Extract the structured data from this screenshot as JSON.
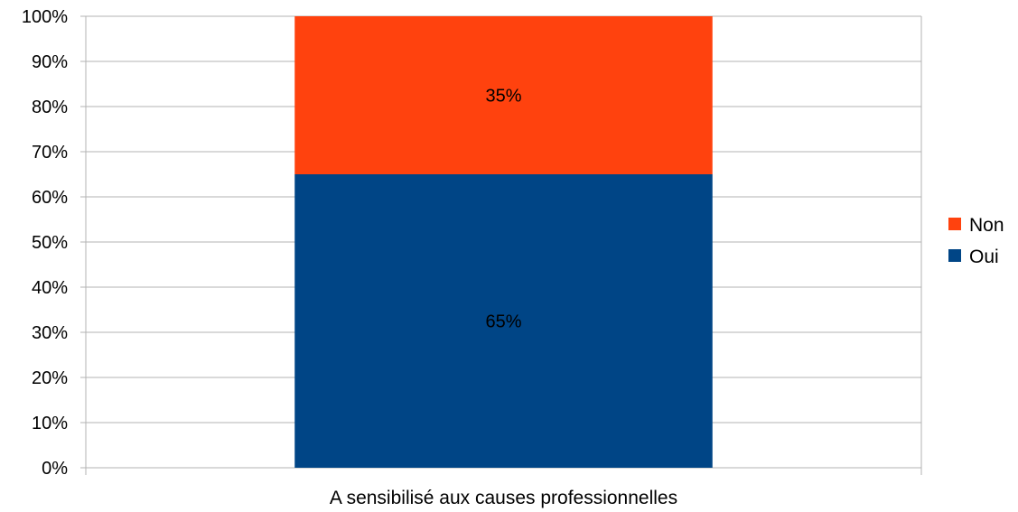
{
  "chart_data": {
    "type": "bar",
    "stacked": true,
    "percent_stacked": true,
    "categories": [
      "A sensibilisé aux causes professionnelles"
    ],
    "series": [
      {
        "name": "Oui",
        "values": [
          65
        ],
        "color": "#004586",
        "label": "65%"
      },
      {
        "name": "Non",
        "values": [
          35
        ],
        "color": "#ff420e",
        "label": "35%"
      }
    ],
    "legend_order": [
      "Non",
      "Oui"
    ],
    "y_ticks": [
      "0%",
      "10%",
      "20%",
      "30%",
      "40%",
      "50%",
      "60%",
      "70%",
      "80%",
      "90%",
      "100%"
    ],
    "ylim": [
      0,
      100
    ],
    "title": "",
    "xlabel": "",
    "ylabel": "",
    "grid": true,
    "legend_position": "right"
  }
}
